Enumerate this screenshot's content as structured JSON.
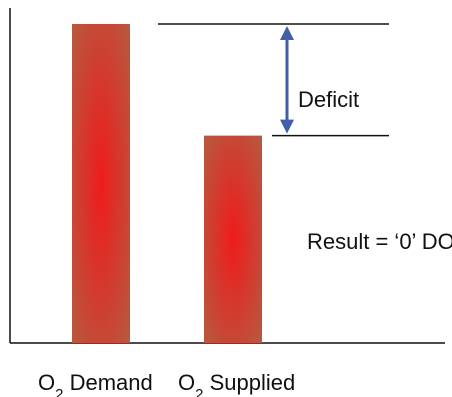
{
  "chart_data": {
    "type": "bar",
    "categories": [
      "O2 Demand",
      "O2 Supplied"
    ],
    "category_labels": [
      {
        "main": "O",
        "sub": "2",
        "rest": " Demand"
      },
      {
        "main": "O",
        "sub": "2",
        "rest": " Supplied"
      }
    ],
    "values": [
      10,
      6.5
    ],
    "ylim": [
      0,
      10.5
    ],
    "grid": false,
    "legend": "none",
    "annotations": {
      "deficit_label": "Deficit",
      "result_label": "Result = ‘0’ DO"
    },
    "colors": {
      "bar_center": "#ee1c1c",
      "bar_edge": "#b65a40",
      "axis": "#111111",
      "arrow": "#3f5fa8"
    }
  }
}
